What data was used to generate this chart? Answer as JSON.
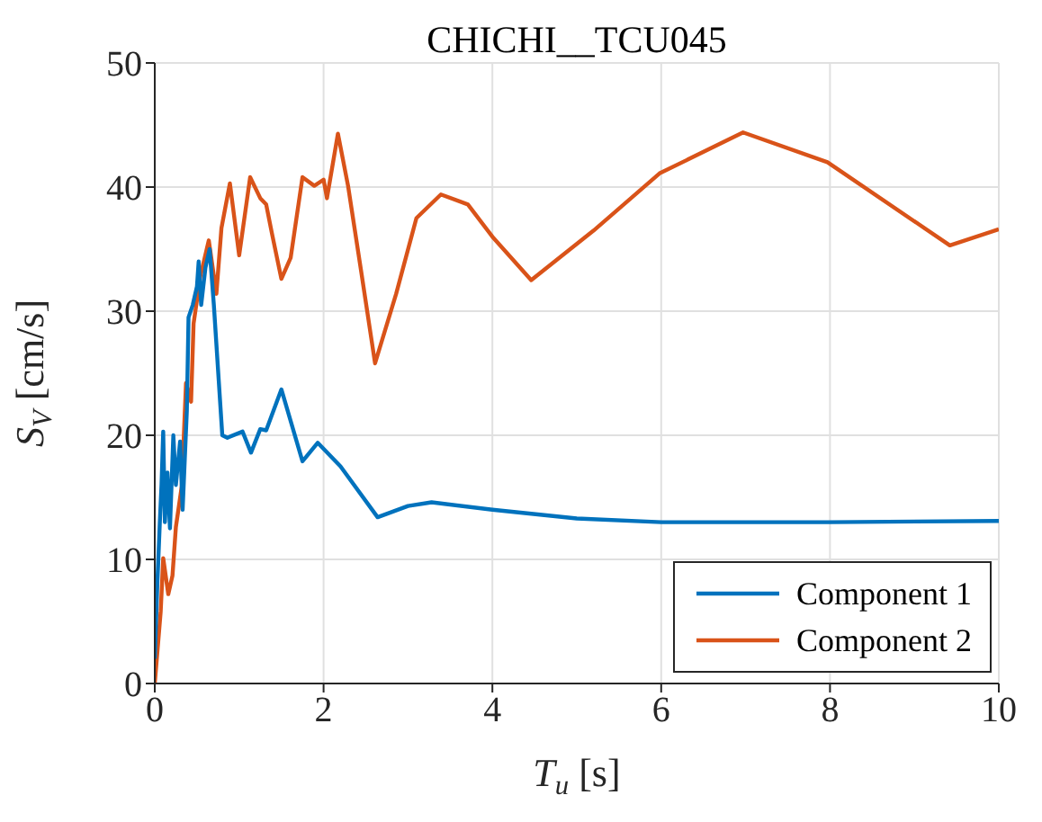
{
  "chart_data": {
    "type": "line",
    "title": "CHICHI__TCU045",
    "xlabel": "T$_{u}$ [s]",
    "ylabel": "S$_{V}$ [cm/s]",
    "xlim": [
      0,
      10
    ],
    "xticks": [
      0,
      2,
      4,
      6,
      8,
      10
    ],
    "ylim": [
      0,
      50
    ],
    "yticks": [
      0,
      10,
      20,
      30,
      40,
      50
    ],
    "grid": true,
    "legend": "bottom right",
    "marker": "none",
    "line_style": "solid",
    "series": [
      {
        "name": "Component 1",
        "color": "#0072bd",
        "x": [
          0,
          0.03,
          0.06,
          0.08,
          0.1,
          0.12,
          0.15,
          0.18,
          0.22,
          0.25,
          0.3,
          0.33,
          0.38,
          0.4,
          0.45,
          0.5,
          0.52,
          0.55,
          0.6,
          0.65,
          0.7,
          0.8,
          0.86,
          1.04,
          1.14,
          1.25,
          1.32,
          1.5,
          1.75,
          1.93,
          2.2,
          2.64,
          3.0,
          3.28,
          4.0,
          5.0,
          6.0,
          8.0,
          10.0
        ],
        "values": [
          2,
          8,
          13,
          16,
          20.3,
          13,
          17,
          12.5,
          20,
          16,
          19.5,
          14,
          22,
          29.5,
          30.5,
          32,
          34,
          30.5,
          33.5,
          35,
          30.5,
          20,
          19.8,
          20.3,
          18.6,
          20.5,
          20.4,
          23.7,
          17.9,
          19.4,
          17.5,
          13.4,
          14.3,
          14.6,
          14.0,
          13.3,
          13.0,
          13.0,
          13.1
        ]
      },
      {
        "name": "Component 2",
        "color": "#d95319",
        "x": [
          0,
          0.07,
          0.1,
          0.16,
          0.21,
          0.25,
          0.32,
          0.37,
          0.43,
          0.46,
          0.54,
          0.64,
          0.73,
          0.79,
          0.89,
          1.0,
          1.13,
          1.25,
          1.32,
          1.39,
          1.5,
          1.61,
          1.75,
          1.89,
          2.0,
          2.04,
          2.17,
          2.29,
          2.45,
          2.61,
          2.86,
          3.1,
          3.39,
          3.71,
          4.0,
          4.46,
          5.2,
          5.98,
          6.97,
          7.97,
          9.42,
          10.0
        ],
        "values": [
          0,
          5.8,
          10.1,
          7.2,
          8.7,
          12.6,
          15.9,
          24.2,
          22.7,
          29,
          32.8,
          35.7,
          31.4,
          36.7,
          40.3,
          34.5,
          40.8,
          39.1,
          38.6,
          36.2,
          32.6,
          34.3,
          40.8,
          40.1,
          40.6,
          39.1,
          44.3,
          40.1,
          33,
          25.8,
          31.4,
          37.5,
          39.4,
          38.6,
          36,
          32.5,
          36.5,
          41.1,
          44.4,
          42.0,
          35.3,
          36.6
        ]
      }
    ]
  }
}
